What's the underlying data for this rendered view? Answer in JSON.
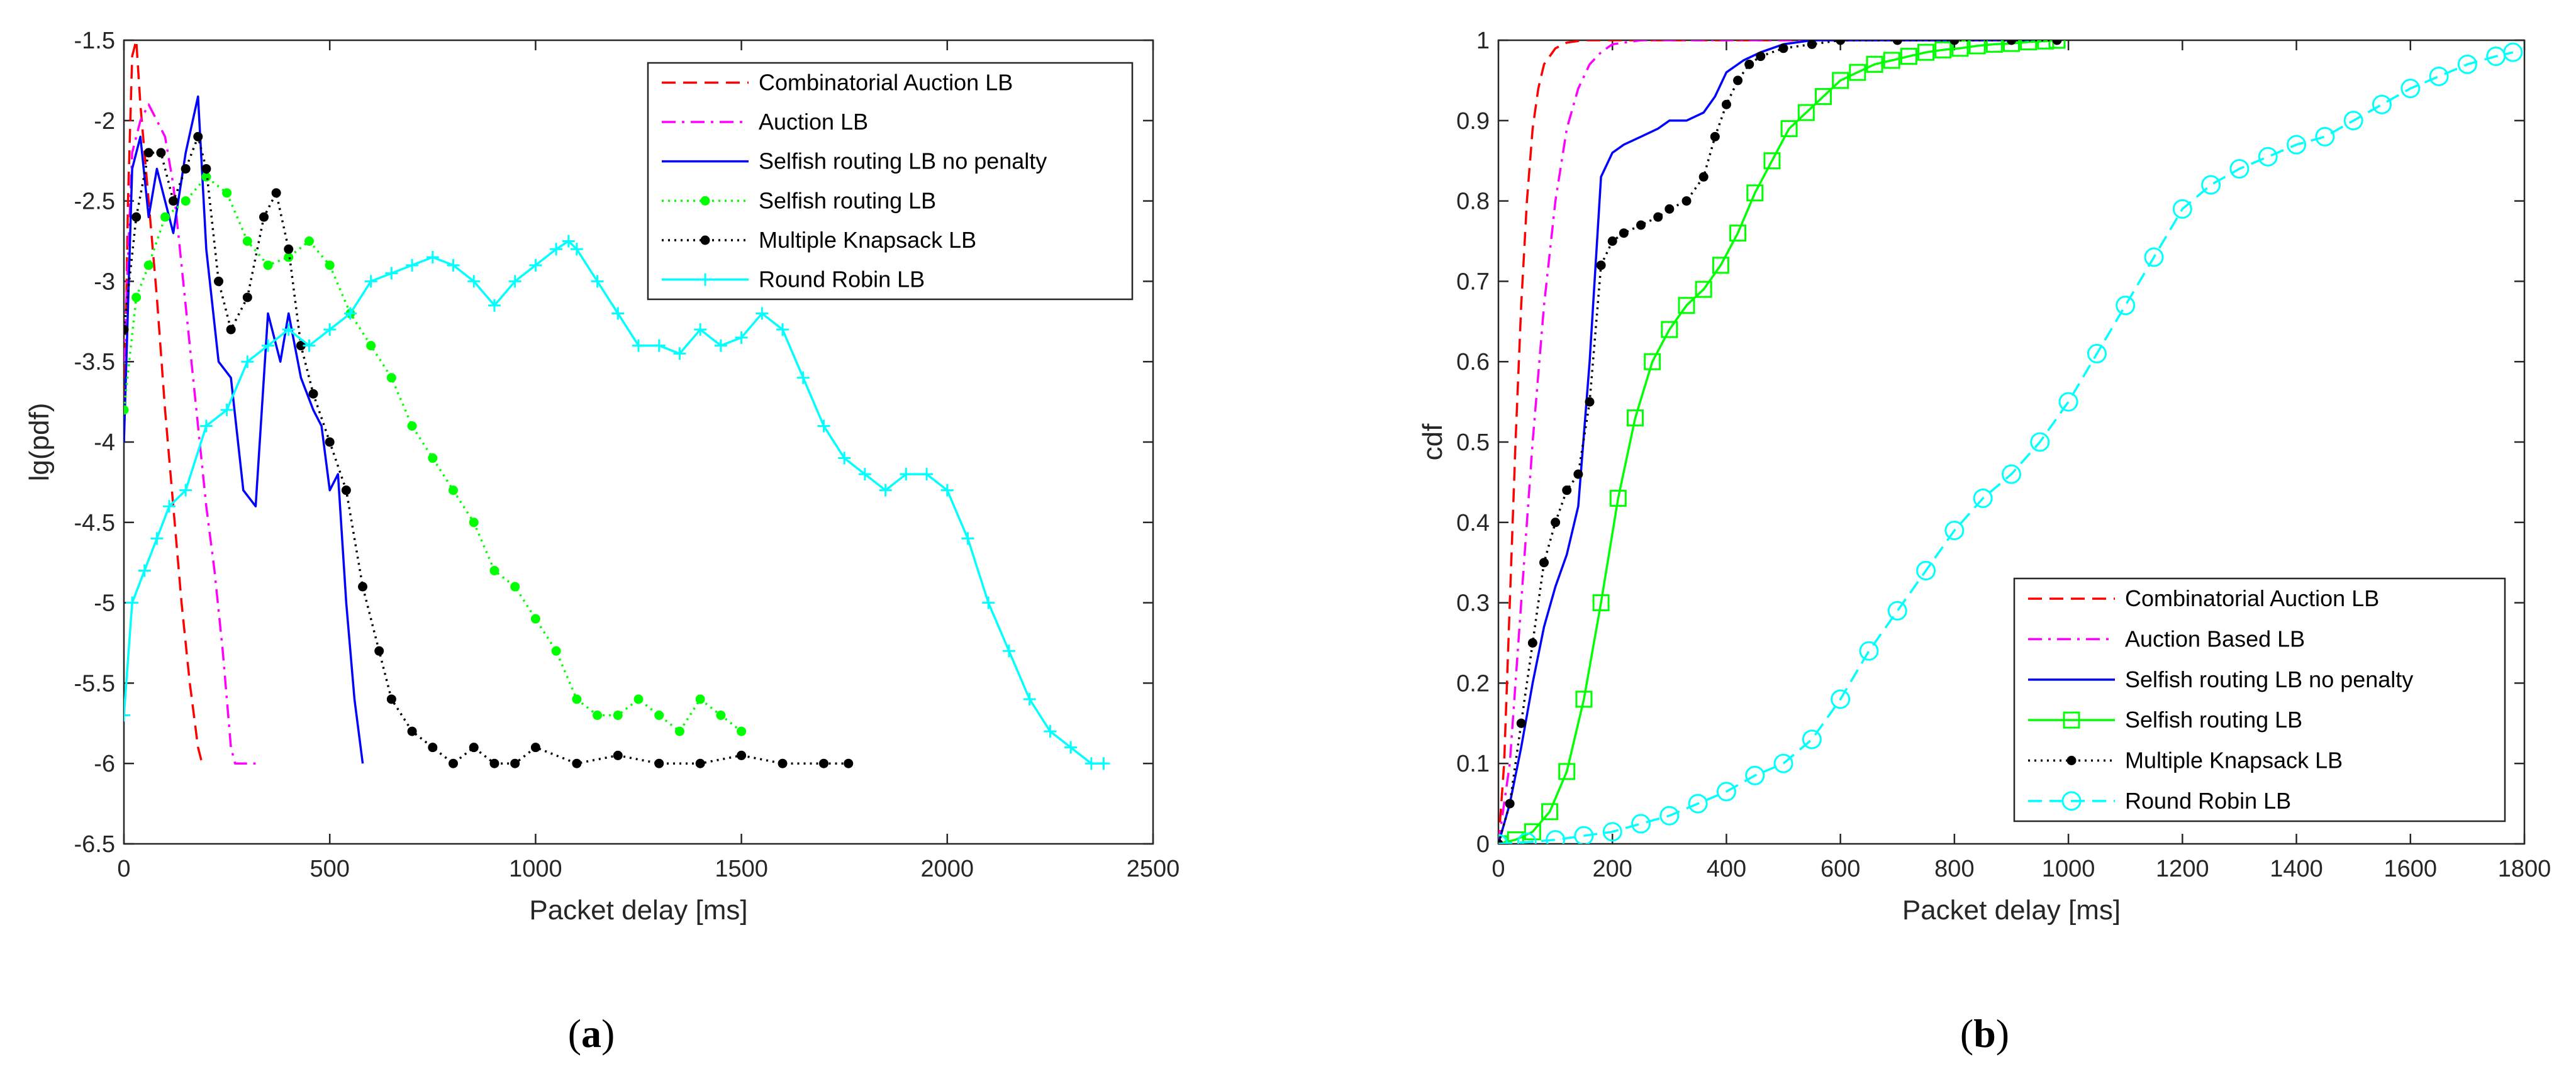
{
  "colors": {
    "axis": "#262626",
    "combinatorial": "#ff0000",
    "auction": "#ff00ff",
    "selfish_no_penalty": "#0000ff",
    "selfish": "#00ff00",
    "knapsack": "#000000",
    "round_robin": "#00ffff"
  },
  "chart_data": [
    {
      "panel_label": "(a)",
      "panel_letter": "a",
      "type": "line",
      "title": "",
      "xlabel": "Packet delay [ms]",
      "ylabel": "lg(pdf)",
      "xlim": [
        0,
        2500
      ],
      "ylim": [
        -6.5,
        -1.5
      ],
      "xticks": [
        0,
        500,
        1000,
        1500,
        2000,
        2500
      ],
      "yticks": [
        -6.5,
        -6,
        -5.5,
        -5,
        -4.5,
        -4,
        -3.5,
        -3,
        -2.5,
        -2,
        -1.5
      ],
      "xtick_labels": [
        "0",
        "500",
        "1000",
        "1500",
        "2000",
        "2500"
      ],
      "ytick_labels": [
        "-6.5",
        "-6",
        "-5.5",
        "-5",
        "-4.5",
        "-4",
        "-3.5",
        "-3",
        "-2.5",
        "-2",
        "-1.5"
      ],
      "grid": false,
      "legend_position": "top-right",
      "series": [
        {
          "name": "Combinatorial Auction LB",
          "color_key": "combinatorial",
          "style": "dashed",
          "marker": "none",
          "x": [
            0,
            10,
            20,
            30,
            40,
            50,
            60,
            80,
            100,
            120,
            140,
            160,
            180,
            190,
            200
          ],
          "y": [
            -4.0,
            -2.5,
            -1.6,
            -1.5,
            -1.9,
            -2.2,
            -2.5,
            -3.1,
            -3.8,
            -4.4,
            -5.0,
            -5.5,
            -5.9,
            -6.0,
            -6.0
          ]
        },
        {
          "name": "Auction LB",
          "color_key": "auction",
          "style": "dashdot",
          "marker": "none",
          "x": [
            0,
            20,
            40,
            60,
            80,
            100,
            120,
            140,
            160,
            180,
            200,
            220,
            240,
            260,
            270,
            280,
            300,
            320
          ],
          "y": [
            -3.5,
            -2.2,
            -2.0,
            -1.9,
            -2.0,
            -2.1,
            -2.4,
            -2.9,
            -3.4,
            -3.9,
            -4.4,
            -4.8,
            -5.3,
            -5.9,
            -6.0,
            -6.0,
            -6.0,
            -6.0
          ]
        },
        {
          "name": "Selfish routing LB no penalty",
          "color_key": "selfish_no_penalty",
          "style": "solid",
          "marker": "none",
          "x": [
            0,
            20,
            40,
            60,
            80,
            100,
            120,
            150,
            180,
            200,
            230,
            260,
            290,
            320,
            350,
            380,
            400,
            430,
            460,
            480,
            500,
            520,
            540,
            560,
            580
          ],
          "y": [
            -4.0,
            -2.3,
            -2.1,
            -2.6,
            -2.3,
            -2.5,
            -2.7,
            -2.2,
            -1.85,
            -2.8,
            -3.5,
            -3.6,
            -4.3,
            -4.4,
            -3.2,
            -3.5,
            -3.2,
            -3.6,
            -3.8,
            -3.9,
            -4.3,
            -4.2,
            -5.0,
            -5.6,
            -6.0
          ]
        },
        {
          "name": "Selfish routing LB",
          "color_key": "selfish",
          "style": "dotted",
          "marker": "dot",
          "x": [
            0,
            30,
            60,
            100,
            150,
            200,
            250,
            300,
            350,
            400,
            450,
            500,
            550,
            600,
            650,
            700,
            750,
            800,
            850,
            900,
            950,
            1000,
            1050,
            1100,
            1150,
            1200,
            1250,
            1300,
            1350,
            1400,
            1450,
            1500
          ],
          "y": [
            -3.8,
            -3.1,
            -2.9,
            -2.6,
            -2.5,
            -2.35,
            -2.45,
            -2.75,
            -2.9,
            -2.85,
            -2.75,
            -2.9,
            -3.2,
            -3.4,
            -3.6,
            -3.9,
            -4.1,
            -4.3,
            -4.5,
            -4.8,
            -4.9,
            -5.1,
            -5.3,
            -5.6,
            -5.7,
            -5.7,
            -5.6,
            -5.7,
            -5.8,
            -5.6,
            -5.7,
            -5.8
          ]
        },
        {
          "name": "Multiple Knapsack LB",
          "color_key": "knapsack",
          "style": "dotted",
          "marker": "dot",
          "x": [
            0,
            30,
            60,
            90,
            120,
            150,
            180,
            200,
            230,
            260,
            300,
            340,
            370,
            400,
            430,
            460,
            500,
            540,
            580,
            620,
            650,
            700,
            750,
            800,
            850,
            900,
            950,
            1000,
            1100,
            1200,
            1300,
            1400,
            1500,
            1600,
            1700,
            1760
          ],
          "y": [
            -3.3,
            -2.6,
            -2.2,
            -2.2,
            -2.5,
            -2.3,
            -2.1,
            -2.3,
            -3.0,
            -3.3,
            -3.1,
            -2.6,
            -2.45,
            -2.8,
            -3.4,
            -3.7,
            -4.0,
            -4.3,
            -4.9,
            -5.3,
            -5.6,
            -5.8,
            -5.9,
            -6.0,
            -5.9,
            -6.0,
            -6.0,
            -5.9,
            -6.0,
            -5.95,
            -6.0,
            -6.0,
            -5.95,
            -6.0,
            -6.0,
            -6.0
          ]
        },
        {
          "name": "Round Robin LB",
          "color_key": "round_robin",
          "style": "solid",
          "marker": "plus",
          "x": [
            0,
            20,
            50,
            80,
            110,
            150,
            200,
            250,
            300,
            350,
            400,
            450,
            500,
            550,
            600,
            650,
            700,
            750,
            800,
            850,
            900,
            950,
            1000,
            1050,
            1080,
            1100,
            1150,
            1200,
            1250,
            1300,
            1350,
            1400,
            1450,
            1500,
            1550,
            1600,
            1650,
            1700,
            1750,
            1800,
            1850,
            1900,
            1950,
            2000,
            2050,
            2100,
            2150,
            2200,
            2250,
            2300,
            2350,
            2380
          ],
          "y": [
            -5.7,
            -5.0,
            -4.8,
            -4.6,
            -4.4,
            -4.3,
            -3.9,
            -3.8,
            -3.5,
            -3.4,
            -3.3,
            -3.4,
            -3.3,
            -3.2,
            -3.0,
            -2.95,
            -2.9,
            -2.85,
            -2.9,
            -3.0,
            -3.15,
            -3.0,
            -2.9,
            -2.8,
            -2.75,
            -2.8,
            -3.0,
            -3.2,
            -3.4,
            -3.4,
            -3.45,
            -3.3,
            -3.4,
            -3.35,
            -3.2,
            -3.3,
            -3.6,
            -3.9,
            -4.1,
            -4.2,
            -4.3,
            -4.2,
            -4.2,
            -4.3,
            -4.6,
            -5.0,
            -5.3,
            -5.6,
            -5.8,
            -5.9,
            -6.0,
            -6.0
          ]
        }
      ]
    },
    {
      "panel_label": "(b)",
      "panel_letter": "b",
      "type": "line",
      "title": "",
      "xlabel": "Packet delay [ms]",
      "ylabel": "cdf",
      "xlim": [
        0,
        1800
      ],
      "ylim": [
        0,
        1
      ],
      "xticks": [
        0,
        200,
        400,
        600,
        800,
        1000,
        1200,
        1400,
        1600,
        1800
      ],
      "yticks": [
        0,
        0.1,
        0.2,
        0.3,
        0.4,
        0.5,
        0.6,
        0.7,
        0.8,
        0.9,
        1
      ],
      "xtick_labels": [
        "0",
        "200",
        "400",
        "600",
        "800",
        "1000",
        "1200",
        "1400",
        "1600",
        "1800"
      ],
      "ytick_labels": [
        "0",
        "0.1",
        "0.2",
        "0.3",
        "0.4",
        "0.5",
        "0.6",
        "0.7",
        "0.8",
        "0.9",
        "1"
      ],
      "grid": false,
      "legend_position": "bottom-right",
      "series": [
        {
          "name": "Combinatorial Auction LB",
          "color_key": "combinatorial",
          "style": "dashed",
          "marker": "none",
          "x": [
            0,
            10,
            20,
            30,
            40,
            50,
            60,
            70,
            80,
            100,
            120,
            150,
            200,
            300,
            400,
            500,
            600,
            700,
            800,
            900,
            980
          ],
          "y": [
            0,
            0.1,
            0.3,
            0.5,
            0.67,
            0.8,
            0.89,
            0.94,
            0.97,
            0.99,
            0.997,
            1,
            1,
            1,
            1,
            1,
            1,
            1,
            1,
            1,
            1
          ]
        },
        {
          "name": "Auction Based LB",
          "color_key": "auction",
          "style": "dashdot",
          "marker": "none",
          "x": [
            0,
            20,
            40,
            60,
            80,
            100,
            120,
            140,
            160,
            180,
            200,
            250,
            300,
            400,
            500,
            600,
            700,
            800,
            900,
            980
          ],
          "y": [
            0,
            0.1,
            0.3,
            0.5,
            0.67,
            0.8,
            0.89,
            0.94,
            0.97,
            0.985,
            0.995,
            1,
            1,
            1,
            1,
            1,
            1,
            1,
            1,
            1
          ]
        },
        {
          "name": "Selfish routing LB no penalty",
          "color_key": "selfish_no_penalty",
          "style": "solid",
          "marker": "none",
          "x": [
            0,
            20,
            40,
            60,
            80,
            100,
            120,
            140,
            160,
            180,
            200,
            220,
            250,
            280,
            300,
            330,
            360,
            380,
            400,
            430,
            460,
            500,
            550,
            600,
            700,
            800,
            900,
            980
          ],
          "y": [
            0,
            0.05,
            0.12,
            0.2,
            0.27,
            0.32,
            0.36,
            0.42,
            0.6,
            0.83,
            0.86,
            0.87,
            0.88,
            0.89,
            0.9,
            0.9,
            0.91,
            0.93,
            0.96,
            0.975,
            0.985,
            0.995,
            1,
            1,
            1,
            1,
            1,
            1
          ]
        },
        {
          "name": "Selfish routing LB",
          "color_key": "selfish",
          "style": "solid",
          "marker": "square",
          "x": [
            0,
            30,
            60,
            90,
            120,
            150,
            180,
            210,
            240,
            270,
            300,
            330,
            360,
            390,
            420,
            450,
            480,
            510,
            540,
            570,
            600,
            630,
            660,
            690,
            720,
            750,
            780,
            810,
            840,
            870,
            900,
            930,
            960,
            980
          ],
          "y": [
            0,
            0.005,
            0.015,
            0.04,
            0.09,
            0.18,
            0.3,
            0.43,
            0.53,
            0.6,
            0.64,
            0.67,
            0.69,
            0.72,
            0.76,
            0.81,
            0.85,
            0.89,
            0.91,
            0.93,
            0.95,
            0.96,
            0.97,
            0.975,
            0.98,
            0.985,
            0.988,
            0.99,
            0.993,
            0.995,
            0.996,
            0.998,
            0.999,
            1
          ]
        },
        {
          "name": "Multiple Knapsack LB",
          "color_key": "knapsack",
          "style": "dotted",
          "marker": "dot",
          "x": [
            0,
            20,
            40,
            60,
            80,
            100,
            120,
            140,
            160,
            180,
            200,
            220,
            250,
            280,
            300,
            330,
            360,
            380,
            400,
            420,
            440,
            460,
            500,
            550,
            600,
            700,
            800,
            900,
            980
          ],
          "y": [
            0,
            0.05,
            0.15,
            0.25,
            0.35,
            0.4,
            0.44,
            0.46,
            0.55,
            0.72,
            0.75,
            0.76,
            0.77,
            0.78,
            0.79,
            0.8,
            0.83,
            0.88,
            0.92,
            0.95,
            0.97,
            0.98,
            0.99,
            0.995,
            1,
            1,
            1,
            1,
            1
          ]
        },
        {
          "name": "Round Robin LB",
          "color_key": "round_robin",
          "style": "dashed",
          "marker": "circle",
          "x": [
            0,
            50,
            100,
            150,
            200,
            250,
            300,
            350,
            400,
            450,
            500,
            550,
            600,
            650,
            700,
            750,
            800,
            850,
            900,
            950,
            1000,
            1050,
            1100,
            1150,
            1200,
            1250,
            1300,
            1350,
            1400,
            1450,
            1500,
            1550,
            1600,
            1650,
            1700,
            1750,
            1780
          ],
          "y": [
            0,
            0.002,
            0.005,
            0.01,
            0.015,
            0.025,
            0.035,
            0.05,
            0.065,
            0.085,
            0.1,
            0.13,
            0.18,
            0.24,
            0.29,
            0.34,
            0.39,
            0.43,
            0.46,
            0.5,
            0.55,
            0.61,
            0.67,
            0.73,
            0.79,
            0.82,
            0.84,
            0.855,
            0.87,
            0.88,
            0.9,
            0.92,
            0.94,
            0.955,
            0.97,
            0.98,
            0.985
          ]
        }
      ]
    }
  ]
}
